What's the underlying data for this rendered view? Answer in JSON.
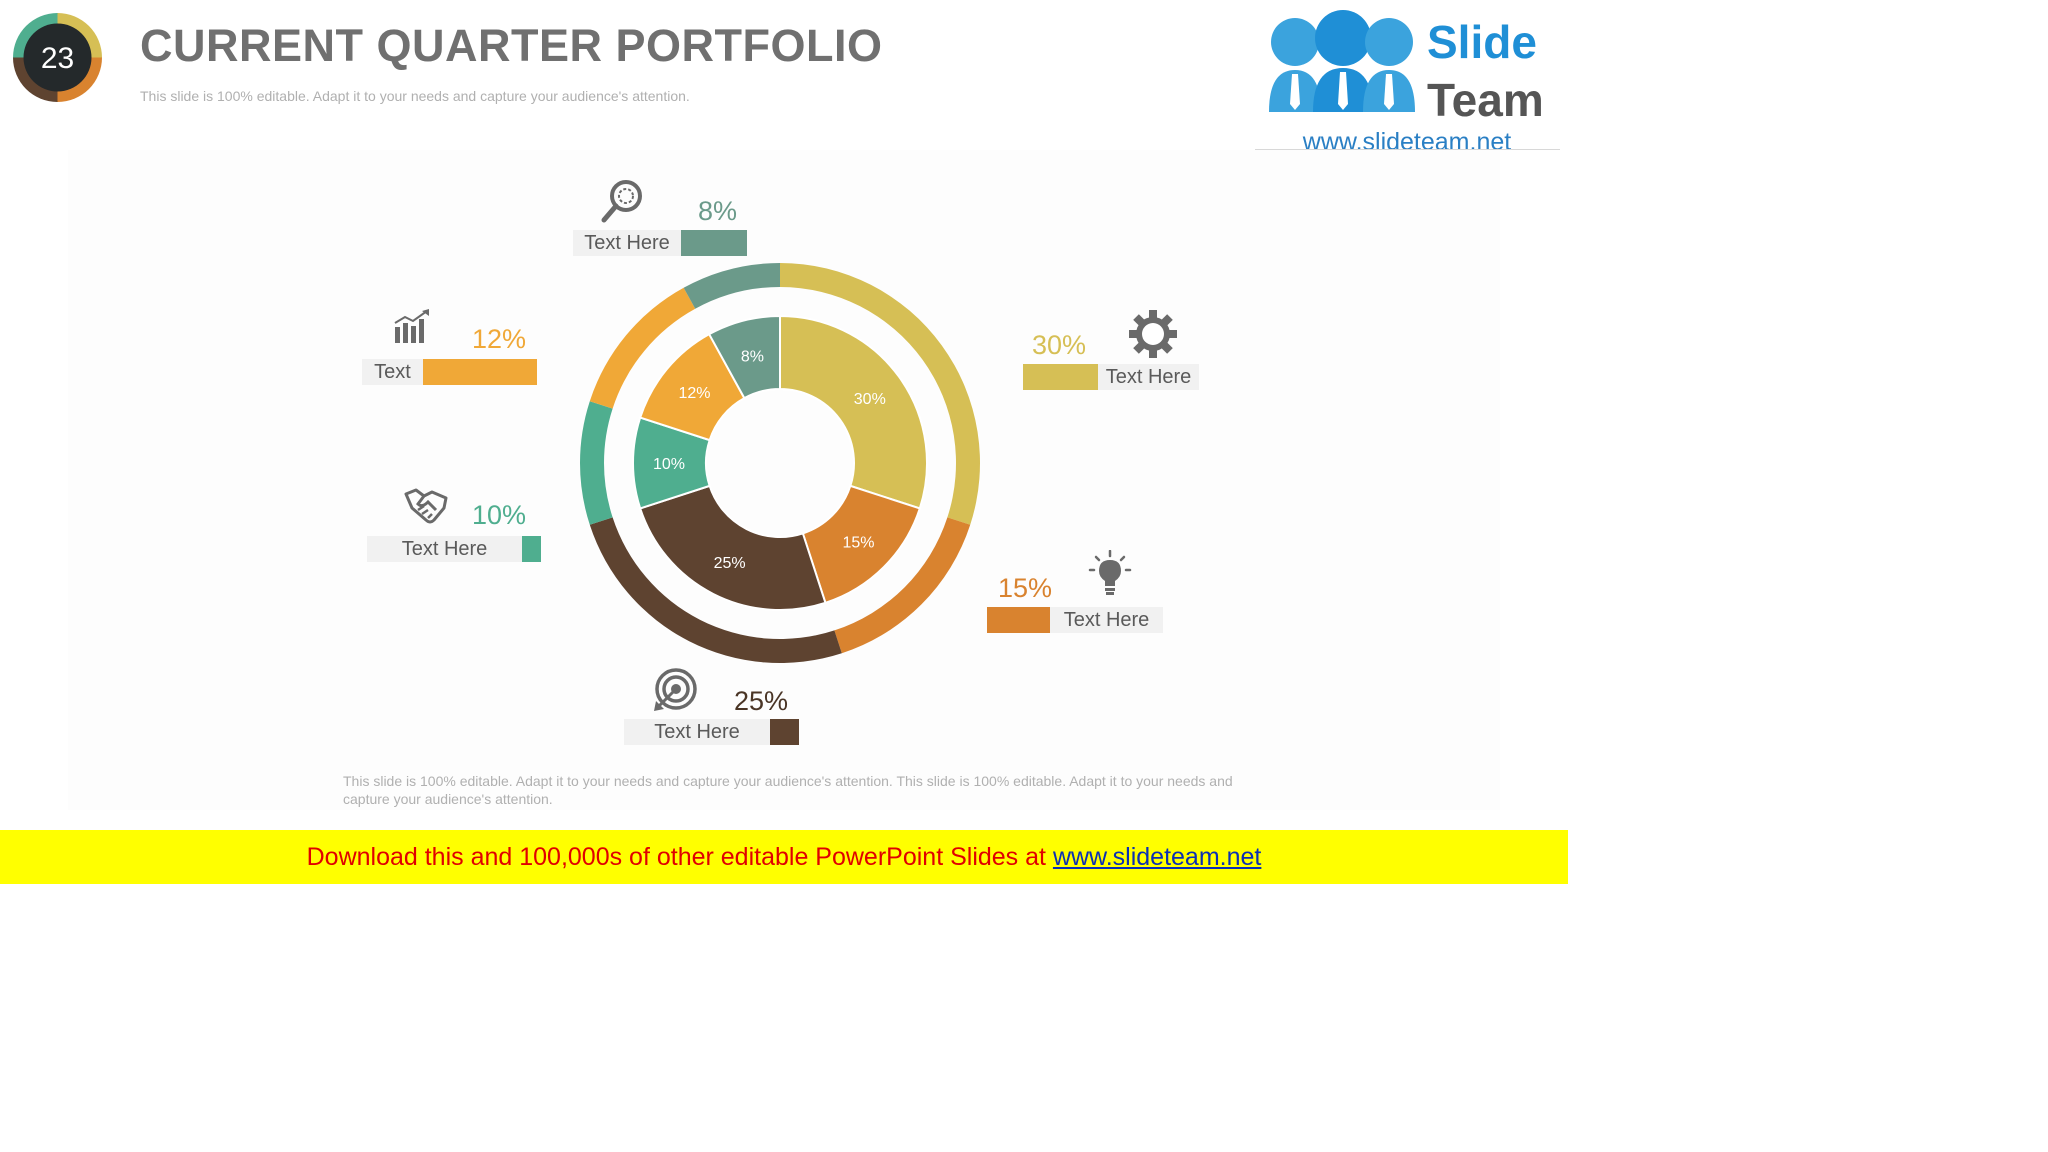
{
  "slide_number": "23",
  "header": {
    "title": "CURRENT QUARTER PORTFOLIO",
    "subtitle": "This slide is 100% editable. Adapt it to your needs and capture your audience's attention."
  },
  "logo": {
    "line1": "Slide",
    "line2": "Team",
    "url": "www.slideteam.net"
  },
  "colors": {
    "gold": "#d6bf55",
    "orange": "#f0a837",
    "dark_orange": "#d9832f",
    "brown": "#5e4330",
    "green": "#4fae8f",
    "teal_grey": "#6b9a8a",
    "title_grey": "#707070"
  },
  "callouts": [
    {
      "label": "Text Here",
      "value": "8%",
      "icon": "search-icon"
    },
    {
      "label": "Text",
      "value": "12%",
      "icon": "chart-icon"
    },
    {
      "label": "Text Here",
      "value": "10%",
      "icon": "handshake-icon"
    },
    {
      "label": "Text Here",
      "value": "25%",
      "icon": "target-icon"
    },
    {
      "label": "Text Here",
      "value": "15%",
      "icon": "lightbulb-icon"
    },
    {
      "label": "Text Here",
      "value": "30%",
      "icon": "gear-icon"
    }
  ],
  "chart_data": {
    "type": "pie",
    "variant": "double-donut",
    "slices": [
      {
        "label": "30%",
        "value": 30,
        "color": "#d6bf55"
      },
      {
        "label": "15%",
        "value": 15,
        "color": "#d9832f"
      },
      {
        "label": "25%",
        "value": 25,
        "color": "#5e4330"
      },
      {
        "label": "10%",
        "value": 10,
        "color": "#4fae8f"
      },
      {
        "label": "12%",
        "value": 12,
        "color": "#f0a837"
      },
      {
        "label": "8%",
        "value": 8,
        "color": "#6b9a8a"
      }
    ]
  },
  "footer": {
    "text": "This slide is 100% editable. Adapt it to your needs and capture your audience's attention. This slide is 100% editable. Adapt it to your needs and capture your audience's attention."
  },
  "banner": {
    "text": "Download this and 100,000s of other editable PowerPoint Slides at ",
    "link": "www.slideteam.net"
  }
}
